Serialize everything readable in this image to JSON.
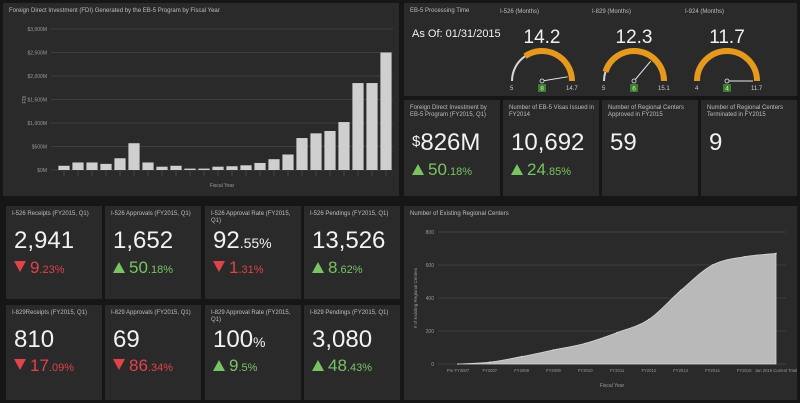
{
  "colors": {
    "panel_bg": "#2a2a2a",
    "page_bg": "#161616",
    "up": "#79c462",
    "down": "#e0434a",
    "gauge_arc": "#e59a1e",
    "gauge_track": "#d8d8d8",
    "bar": "#cfcfcf",
    "area": "#b9b9b9"
  },
  "fdi_chart": {
    "title": "Foreign Direct Investment (FDI) Generated by the EB-5 Program by Fiscal Year",
    "ylabel": "FDI",
    "xlabel": "Fiscal Year",
    "ytick_labels": [
      "$0M",
      "$500M",
      "$1,000M",
      "$1,500M",
      "$2,000M",
      "$2,500M",
      "$3,000M"
    ]
  },
  "gauges": {
    "panel_title": "EB-5 Processing Time",
    "as_of": "As Of: 01/31/2015",
    "items": [
      {
        "title": "I-526 (Months)",
        "value": "14.2",
        "min": "5",
        "max": "14.7",
        "target": "8"
      },
      {
        "title": "I-829 (Months)",
        "value": "12.3",
        "min": "5",
        "max": "15.1",
        "target": "6"
      },
      {
        "title": "I-924 (Months)",
        "value": "11.7",
        "min": "4",
        "max": "11.7",
        "target": "4"
      }
    ]
  },
  "kpis_top": [
    {
      "title": "Foreign Direct Investment by EB-5 Program (FY2015, Q1)",
      "dollar": "$",
      "value": "826M",
      "pct": "",
      "change": "50",
      "change_pct": ".18%",
      "dir": "up"
    },
    {
      "title": "Number of EB-5 Visas Issued in FY2014",
      "dollar": "",
      "value": "10,692",
      "pct": "",
      "change": "24",
      "change_pct": ".85%",
      "dir": "up"
    },
    {
      "title": "Number of Regional Centers Approved in FY2015",
      "dollar": "",
      "value": "59",
      "pct": "",
      "change": "",
      "change_pct": "",
      "dir": ""
    },
    {
      "title": "Number of Regional Centers Terminated in FY2015",
      "dollar": "",
      "value": "9",
      "pct": "",
      "change": "",
      "change_pct": "",
      "dir": ""
    }
  ],
  "kpis_row1": [
    {
      "title": "I-526 Receipts (FY2015, Q1)",
      "value": "2,941",
      "pct": "",
      "change": "9",
      "change_pct": ".23%",
      "dir": "down"
    },
    {
      "title": "I-526 Approvals (FY2015, Q1)",
      "value": "1,652",
      "pct": "",
      "change": "50",
      "change_pct": ".18%",
      "dir": "up"
    },
    {
      "title": "I-526 Approval Rate (FY2015, Q1)",
      "value": "92",
      "pct": ".55%",
      "change": "1",
      "change_pct": ".31%",
      "dir": "down"
    },
    {
      "title": "I-526 Pendings (FY2015, Q1)",
      "value": "13,526",
      "pct": "",
      "change": "8",
      "change_pct": ".62%",
      "dir": "up"
    }
  ],
  "kpis_row2": [
    {
      "title": "I-829Receipts (FY2015, Q1)",
      "value": "810",
      "pct": "",
      "change": "17",
      "change_pct": ".09%",
      "dir": "down"
    },
    {
      "title": "I-829 Approvals (FY2015, Q1)",
      "value": "69",
      "pct": "",
      "change": "86",
      "change_pct": ".34%",
      "dir": "down"
    },
    {
      "title": "I-829 Approval Rate (FY2015, Q1)",
      "value": "100",
      "pct": "%",
      "change": "9",
      "change_pct": ".5%",
      "dir": "up"
    },
    {
      "title": "I-829 Pendings (FY2015, Q1)",
      "value": "3,080",
      "pct": "",
      "change": "48",
      "change_pct": ".43%",
      "dir": "up"
    }
  ],
  "rc_chart": {
    "title": "Number of Existing Regional Centers",
    "xlabel": "Fiscal Year",
    "ylabel": "# of Existing Regional Centers",
    "ytick_labels": [
      "0",
      "200",
      "400",
      "600",
      "800"
    ],
    "xtick_labels": [
      "Pre FY2007",
      "FY2007",
      "FY2008",
      "FY2009",
      "FY2010",
      "FY2011",
      "FY2012",
      "FY2013",
      "FY2014",
      "FY2015",
      "Jan 2015 Current Total"
    ]
  },
  "chart_data": [
    {
      "type": "bar",
      "title": "Foreign Direct Investment (FDI) Generated by the EB-5 Program by Fiscal Year",
      "xlabel": "Fiscal Year",
      "ylabel": "FDI",
      "ylim": [
        0,
        3000
      ],
      "values": [
        90,
        160,
        160,
        130,
        250,
        570,
        160,
        70,
        90,
        30,
        30,
        70,
        80,
        100,
        150,
        230,
        330,
        680,
        780,
        830,
        1020,
        1850,
        1850,
        2500
      ],
      "grid": true
    },
    {
      "type": "area",
      "title": "Number of Existing Regional Centers",
      "xlabel": "Fiscal Year",
      "ylabel": "# of Existing Regional Centers",
      "ylim": [
        0,
        800
      ],
      "categories": [
        "Pre FY2007",
        "FY2007",
        "FY2008",
        "FY2009",
        "FY2010",
        "FY2011",
        "FY2012",
        "FY2013",
        "FY2014",
        "FY2015",
        "Jan 2015 Current Total"
      ],
      "values": [
        0,
        11,
        45,
        85,
        125,
        190,
        270,
        445,
        600,
        650,
        670
      ],
      "grid": true
    }
  ]
}
